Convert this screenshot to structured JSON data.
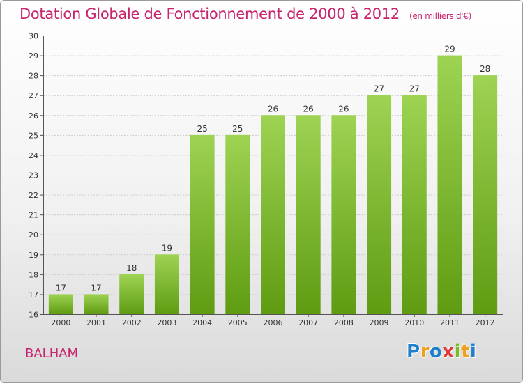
{
  "header": {
    "title": "Dotation Globale de Fonctionnement de 2000 à 2012",
    "subtitle": "(en milliers d'€)"
  },
  "commune": "BALHAM",
  "logo": {
    "letters": [
      {
        "ch": "P",
        "color": "#1f7fc8"
      },
      {
        "ch": "r",
        "color": "#f0a020"
      },
      {
        "ch": "o",
        "color": "#1f7fc8"
      },
      {
        "ch": "x",
        "color": "#e03a3a"
      },
      {
        "ch": "i",
        "color": "#7cb82f"
      },
      {
        "ch": "t",
        "color": "#f0a020"
      },
      {
        "ch": "i",
        "color": "#1f7fc8"
      }
    ]
  },
  "colors": {
    "accent": "#c8246e",
    "bar_top": "#9ed353",
    "bar_bottom": "#5f9c12"
  },
  "chart_data": {
    "type": "bar",
    "categories": [
      "2000",
      "2001",
      "2002",
      "2003",
      "2004",
      "2005",
      "2006",
      "2007",
      "2008",
      "2009",
      "2010",
      "2011",
      "2012"
    ],
    "values": [
      17,
      17,
      18,
      19,
      25,
      25,
      26,
      26,
      26,
      27,
      27,
      29,
      28
    ],
    "ylim": [
      16,
      30
    ],
    "yticks": [
      16,
      17,
      18,
      19,
      20,
      21,
      22,
      23,
      24,
      25,
      26,
      27,
      28,
      29,
      30
    ],
    "grid": true,
    "legend": "none"
  }
}
